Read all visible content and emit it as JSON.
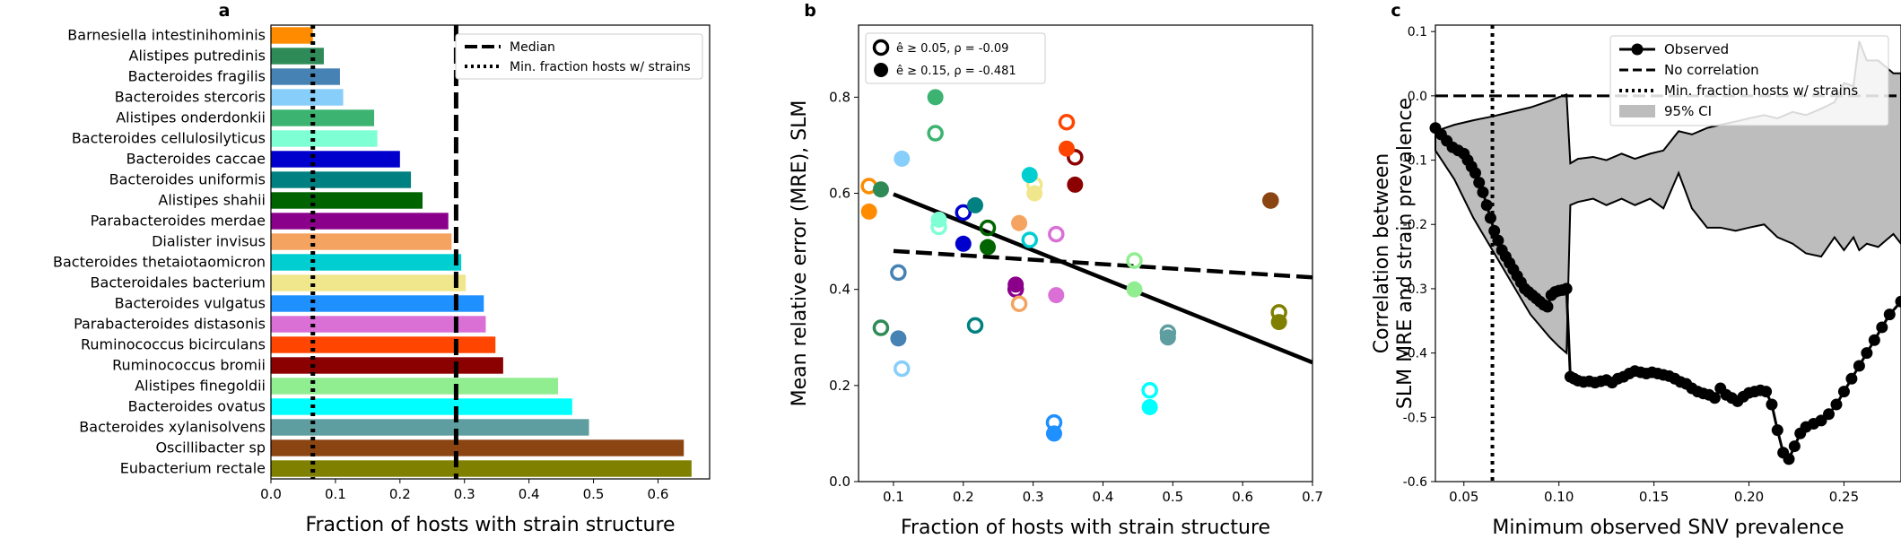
{
  "chart_data": [
    {
      "panel": "a",
      "type": "bar",
      "orientation": "horizontal",
      "xlabel": "Fraction of hosts with strain structure",
      "xlim": [
        0,
        0.68
      ],
      "xticks": [
        "0.0",
        "0.1",
        "0.2",
        "0.3",
        "0.4",
        "0.5",
        "0.6"
      ],
      "categories": [
        "Barnesiella intestinihominis",
        "Alistipes putredinis",
        "Bacteroides fragilis",
        "Bacteroides stercoris",
        "Alistipes onderdonkii",
        "Bacteroides cellulosilyticus",
        "Bacteroides caccae",
        "Bacteroides uniformis",
        "Alistipes shahii",
        "Parabacteroides merdae",
        "Dialister invisus",
        "Bacteroides thetaiotaomicron",
        "Bacteroidales bacterium",
        "Bacteroides vulgatus",
        "Parabacteroides distasonis",
        "Ruminococcus bicirculans",
        "Ruminococcus bromii",
        "Alistipes finegoldii",
        "Bacteroides ovatus",
        "Bacteroides xylanisolvens",
        "Oscillibacter sp",
        "Eubacterium rectale"
      ],
      "values": [
        0.065,
        0.082,
        0.107,
        0.112,
        0.16,
        0.165,
        0.2,
        0.217,
        0.235,
        0.275,
        0.28,
        0.295,
        0.302,
        0.33,
        0.333,
        0.348,
        0.36,
        0.445,
        0.467,
        0.493,
        0.64,
        0.652
      ],
      "colors": [
        "#ff8c00",
        "#2e8b57",
        "#4682b4",
        "#87cefa",
        "#3cb371",
        "#7fffd4",
        "#0000cd",
        "#008080",
        "#006400",
        "#8b008b",
        "#f4a460",
        "#00ced1",
        "#f0e68c",
        "#1e90ff",
        "#da70d6",
        "#ff4500",
        "#8b0000",
        "#90ee90",
        "#00ffff",
        "#5f9ea0",
        "#8b4513",
        "#808000"
      ],
      "reference_lines": [
        {
          "label": "Median",
          "value": 0.287,
          "style": "dashed"
        },
        {
          "label": "Min. fraction hosts w/ strains",
          "value": 0.065,
          "style": "dotted"
        }
      ]
    },
    {
      "panel": "b",
      "type": "scatter",
      "xlabel": "Fraction of hosts with strain structure",
      "ylabel": "Mean relative error (MRE), SLM",
      "xlim": [
        0.05,
        0.7
      ],
      "ylim": [
        0.0,
        0.95
      ],
      "xticks": [
        "0.1",
        "0.2",
        "0.3",
        "0.4",
        "0.5",
        "0.6",
        "0.7"
      ],
      "yticks": [
        "0.0",
        "0.2",
        "0.4",
        "0.6",
        "0.8"
      ],
      "legend": [
        {
          "label": "ê ≥ 0.05, ρ = -0.09",
          "marker": "open"
        },
        {
          "label": "ê ≥ 0.15, ρ = -0.481",
          "marker": "filled"
        }
      ],
      "open_points": [
        [
          0.065,
          0.615,
          "#ff8c00"
        ],
        [
          0.082,
          0.32,
          "#2e8b57"
        ],
        [
          0.107,
          0.435,
          "#4682b4"
        ],
        [
          0.112,
          0.235,
          "#87cefa"
        ],
        [
          0.16,
          0.725,
          "#3cb371"
        ],
        [
          0.165,
          0.53,
          "#7fffd4"
        ],
        [
          0.2,
          0.56,
          "#0000cd"
        ],
        [
          0.217,
          0.325,
          "#008080"
        ],
        [
          0.235,
          0.528,
          "#006400"
        ],
        [
          0.275,
          0.4,
          "#8b008b"
        ],
        [
          0.28,
          0.37,
          "#f4a460"
        ],
        [
          0.295,
          0.503,
          "#00ced1"
        ],
        [
          0.302,
          0.618,
          "#f0e68c"
        ],
        [
          0.33,
          0.123,
          "#1e90ff"
        ],
        [
          0.333,
          0.515,
          "#da70d6"
        ],
        [
          0.348,
          0.748,
          "#ff4500"
        ],
        [
          0.36,
          0.675,
          "#8b0000"
        ],
        [
          0.445,
          0.46,
          "#90ee90"
        ],
        [
          0.467,
          0.19,
          "#00ffff"
        ],
        [
          0.493,
          0.31,
          "#5f9ea0"
        ],
        [
          0.64,
          0.585,
          "#8b4513"
        ],
        [
          0.652,
          0.352,
          "#808000"
        ]
      ],
      "filled_points": [
        [
          0.065,
          0.562,
          "#ff8c00"
        ],
        [
          0.082,
          0.608,
          "#2e8b57"
        ],
        [
          0.107,
          0.298,
          "#4682b4"
        ],
        [
          0.112,
          0.672,
          "#87cefa"
        ],
        [
          0.16,
          0.8,
          "#3cb371"
        ],
        [
          0.165,
          0.545,
          "#7fffd4"
        ],
        [
          0.2,
          0.495,
          "#0000cd"
        ],
        [
          0.217,
          0.575,
          "#008080"
        ],
        [
          0.235,
          0.488,
          "#006400"
        ],
        [
          0.275,
          0.41,
          "#8b008b"
        ],
        [
          0.28,
          0.538,
          "#f4a460"
        ],
        [
          0.295,
          0.638,
          "#00ced1"
        ],
        [
          0.302,
          0.6,
          "#f0e68c"
        ],
        [
          0.33,
          0.1,
          "#1e90ff"
        ],
        [
          0.333,
          0.388,
          "#da70d6"
        ],
        [
          0.348,
          0.693,
          "#ff4500"
        ],
        [
          0.36,
          0.618,
          "#8b0000"
        ],
        [
          0.445,
          0.4,
          "#90ee90"
        ],
        [
          0.467,
          0.155,
          "#00ffff"
        ],
        [
          0.493,
          0.3,
          "#5f9ea0"
        ],
        [
          0.64,
          0.585,
          "#8b4513"
        ],
        [
          0.652,
          0.332,
          "#808000"
        ]
      ],
      "fit_lines": [
        {
          "marker": "open",
          "style": "dashed",
          "x": [
            0.1,
            0.7
          ],
          "y": [
            0.48,
            0.425
          ]
        },
        {
          "marker": "filled",
          "style": "solid",
          "x": [
            0.1,
            0.7
          ],
          "y": [
            0.598,
            0.248
          ]
        }
      ]
    },
    {
      "panel": "c",
      "type": "line",
      "xlabel": "Minimum observed SNV prevalence",
      "ylabel": "Correlation between SLM MRE and strain prevalence",
      "xlim": [
        0.035,
        0.28
      ],
      "ylim": [
        -0.6,
        0.11
      ],
      "xticks": [
        "0.05",
        "0.10",
        "0.15",
        "0.20",
        "0.25"
      ],
      "yticks": [
        "0.1",
        "0.0",
        "-0.1",
        "-0.2",
        "-0.3",
        "-0.4",
        "-0.5",
        "-0.6"
      ],
      "legend": [
        "Observed",
        "No correlation",
        "Min. fraction hosts w/ strains",
        "95% CI"
      ],
      "observed": {
        "x": [
          0.035,
          0.038,
          0.041,
          0.044,
          0.047,
          0.05,
          0.052,
          0.054,
          0.056,
          0.058,
          0.06,
          0.062,
          0.064,
          0.066,
          0.068,
          0.07,
          0.072,
          0.074,
          0.076,
          0.078,
          0.08,
          0.082,
          0.084,
          0.086,
          0.088,
          0.09,
          0.092,
          0.094,
          0.096,
          0.098,
          0.1,
          0.102,
          0.104,
          0.106,
          0.108,
          0.11,
          0.113,
          0.116,
          0.119,
          0.122,
          0.125,
          0.128,
          0.131,
          0.134,
          0.137,
          0.14,
          0.143,
          0.146,
          0.149,
          0.152,
          0.155,
          0.158,
          0.161,
          0.164,
          0.167,
          0.17,
          0.173,
          0.176,
          0.179,
          0.182,
          0.185,
          0.188,
          0.191,
          0.194,
          0.197,
          0.2,
          0.203,
          0.206,
          0.209,
          0.212,
          0.215,
          0.218,
          0.221,
          0.224,
          0.227,
          0.23,
          0.234,
          0.238,
          0.242,
          0.246,
          0.25,
          0.254,
          0.258,
          0.262,
          0.266,
          0.27,
          0.274,
          0.28
        ],
        "y": [
          -0.05,
          -0.06,
          -0.07,
          -0.08,
          -0.085,
          -0.09,
          -0.1,
          -0.11,
          -0.12,
          -0.135,
          -0.15,
          -0.17,
          -0.19,
          -0.21,
          -0.225,
          -0.24,
          -0.25,
          -0.26,
          -0.27,
          -0.28,
          -0.29,
          -0.3,
          -0.305,
          -0.31,
          -0.315,
          -0.32,
          -0.325,
          -0.328,
          -0.31,
          -0.305,
          -0.303,
          -0.302,
          -0.3,
          -0.437,
          -0.44,
          -0.443,
          -0.445,
          -0.444,
          -0.446,
          -0.444,
          -0.442,
          -0.446,
          -0.44,
          -0.437,
          -0.432,
          -0.428,
          -0.43,
          -0.432,
          -0.43,
          -0.432,
          -0.434,
          -0.436,
          -0.44,
          -0.445,
          -0.448,
          -0.455,
          -0.46,
          -0.463,
          -0.465,
          -0.47,
          -0.455,
          -0.465,
          -0.47,
          -0.475,
          -0.468,
          -0.462,
          -0.46,
          -0.458,
          -0.46,
          -0.48,
          -0.52,
          -0.555,
          -0.565,
          -0.545,
          -0.525,
          -0.515,
          -0.51,
          -0.505,
          -0.495,
          -0.48,
          -0.46,
          -0.44,
          -0.42,
          -0.4,
          -0.38,
          -0.36,
          -0.34,
          -0.32
        ]
      },
      "ci_upper": {
        "x": [
          0.035,
          0.045,
          0.055,
          0.065,
          0.075,
          0.085,
          0.095,
          0.1,
          0.104,
          0.106,
          0.11,
          0.118,
          0.125,
          0.133,
          0.14,
          0.148,
          0.155,
          0.163,
          0.17,
          0.178,
          0.185,
          0.193,
          0.2,
          0.208,
          0.215,
          0.223,
          0.23,
          0.238,
          0.245,
          0.25,
          0.255,
          0.258,
          0.262,
          0.268,
          0.272,
          0.276,
          0.28
        ],
        "y": [
          -0.055,
          -0.045,
          -0.038,
          -0.032,
          -0.025,
          -0.018,
          -0.008,
          -0.002,
          0.002,
          -0.105,
          -0.098,
          -0.095,
          -0.1,
          -0.09,
          -0.098,
          -0.09,
          -0.085,
          -0.055,
          -0.06,
          -0.05,
          -0.045,
          -0.04,
          -0.035,
          -0.03,
          -0.035,
          -0.025,
          -0.03,
          -0.02,
          -0.01,
          0.02,
          0.015,
          0.085,
          0.055,
          0.055,
          0.045,
          0.035,
          0.035
        ]
      },
      "ci_lower": {
        "x": [
          0.035,
          0.045,
          0.055,
          0.065,
          0.075,
          0.085,
          0.095,
          0.1,
          0.104,
          0.106,
          0.11,
          0.118,
          0.125,
          0.133,
          0.14,
          0.148,
          0.155,
          0.163,
          0.17,
          0.178,
          0.185,
          0.193,
          0.2,
          0.208,
          0.215,
          0.223,
          0.23,
          0.238,
          0.245,
          0.25,
          0.255,
          0.258,
          0.262,
          0.268,
          0.272,
          0.276,
          0.28
        ],
        "y": [
          -0.085,
          -0.13,
          -0.19,
          -0.24,
          -0.29,
          -0.34,
          -0.375,
          -0.39,
          -0.4,
          -0.17,
          -0.165,
          -0.16,
          -0.17,
          -0.16,
          -0.17,
          -0.16,
          -0.175,
          -0.12,
          -0.175,
          -0.205,
          -0.205,
          -0.21,
          -0.205,
          -0.2,
          -0.22,
          -0.23,
          -0.245,
          -0.25,
          -0.22,
          -0.24,
          -0.22,
          -0.24,
          -0.23,
          -0.235,
          -0.225,
          -0.215,
          -0.23
        ]
      },
      "zero_line": 0,
      "vline": 0.065
    }
  ],
  "panels": {
    "a": "a",
    "b": "b",
    "c": "c"
  }
}
